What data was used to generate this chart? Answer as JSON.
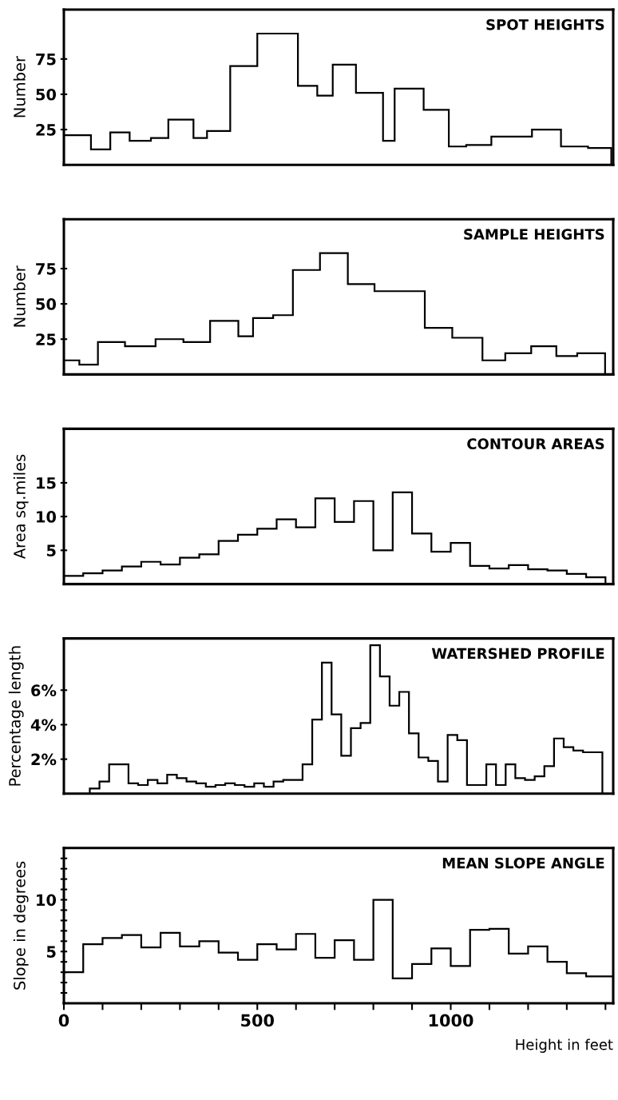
{
  "chart_data": [
    {
      "type": "histogram",
      "title": "SPOT HEIGHTS",
      "ylabel": "Number",
      "color": "#000000",
      "bins": [
        0,
        70,
        120,
        170,
        225,
        270,
        335,
        370,
        430,
        500,
        605,
        655,
        695,
        755,
        825,
        855,
        930,
        995,
        1040,
        1105,
        1210,
        1285,
        1355,
        1415
      ],
      "values": [
        21,
        11,
        23,
        17,
        19,
        32,
        19,
        24,
        70,
        93,
        56,
        49,
        71,
        51,
        17,
        54,
        39,
        13,
        14,
        20,
        25,
        13,
        12
      ],
      "xlim": [
        0,
        1420
      ],
      "ylim": [
        0,
        110
      ],
      "yticks": [
        25,
        50,
        75
      ],
      "tick_labels": "y"
    },
    {
      "type": "histogram",
      "title": "SAMPLE HEIGHTS",
      "ylabel": "Number",
      "color": "#000000",
      "bins": [
        0,
        40,
        88,
        158,
        237,
        309,
        378,
        451,
        489,
        541,
        592,
        662,
        734,
        803,
        933,
        1004,
        1082,
        1141,
        1208,
        1273,
        1327,
        1399
      ],
      "values": [
        10,
        7,
        23,
        20,
        25,
        23,
        38,
        27,
        40,
        42,
        74,
        86,
        64,
        59,
        33,
        26,
        10,
        15,
        20,
        13,
        15
      ],
      "xlim": [
        0,
        1420
      ],
      "ylim": [
        0,
        110
      ],
      "yticks": [
        25,
        50,
        75
      ],
      "tick_labels": "y"
    },
    {
      "type": "histogram",
      "title": "CONTOUR AREAS",
      "ylabel": "Area sq.miles",
      "color": "#000000",
      "bins": [
        0,
        50,
        100,
        150,
        200,
        250,
        300,
        350,
        400,
        450,
        500,
        550,
        600,
        650,
        700,
        750,
        800,
        850,
        900,
        950,
        1000,
        1050,
        1100,
        1150,
        1200,
        1250,
        1300,
        1350,
        1400
      ],
      "values": [
        1.2,
        1.6,
        2.0,
        2.6,
        3.3,
        2.9,
        3.9,
        4.4,
        6.4,
        7.3,
        8.2,
        9.6,
        8.4,
        12.7,
        9.2,
        12.3,
        5.0,
        13.6,
        7.5,
        4.8,
        6.1,
        2.7,
        2.3,
        2.8,
        2.2,
        2.0,
        1.5,
        1.0
      ],
      "xlim": [
        0,
        1420
      ],
      "ylim": [
        0,
        23
      ],
      "yticks": [
        5,
        10,
        15
      ],
      "tick_labels": "y"
    },
    {
      "type": "histogram",
      "title": "WATERSHED PROFILE",
      "ylabel": "Percentage length",
      "color": "#000000",
      "bins": [
        67,
        92,
        117,
        142,
        167,
        192,
        217,
        242,
        267,
        292,
        317,
        342,
        367,
        392,
        417,
        442,
        467,
        492,
        517,
        542,
        567,
        592,
        617,
        642,
        667,
        692,
        717,
        742,
        767,
        792,
        817,
        842,
        867,
        892,
        917,
        942,
        967,
        992,
        1017,
        1042,
        1067,
        1092,
        1117,
        1142,
        1167,
        1192,
        1217,
        1242,
        1267,
        1292,
        1317,
        1342,
        1367,
        1392
      ],
      "values": [
        0.3,
        0.7,
        1.7,
        1.7,
        0.6,
        0.5,
        0.8,
        0.6,
        1.1,
        0.9,
        0.7,
        0.6,
        0.4,
        0.5,
        0.6,
        0.5,
        0.4,
        0.6,
        0.4,
        0.7,
        0.8,
        0.8,
        1.7,
        4.3,
        7.6,
        4.6,
        2.2,
        3.8,
        4.1,
        8.6,
        6.8,
        5.1,
        5.9,
        3.5,
        2.1,
        1.9,
        0.7,
        3.4,
        3.1,
        0.5,
        0.5,
        1.7,
        0.5,
        1.7,
        0.9,
        0.8,
        1.0,
        1.6,
        3.2,
        2.7,
        2.5,
        2.4,
        2.4
      ],
      "xlim": [
        0,
        1420
      ],
      "ylim": [
        0,
        9
      ],
      "yticks": [
        {
          "value": 2,
          "label": "2%"
        },
        {
          "value": 4,
          "label": "4%"
        },
        {
          "value": 6,
          "label": "6%"
        }
      ],
      "tick_labels": "y"
    },
    {
      "type": "histogram",
      "title": "MEAN SLOPE ANGLE",
      "ylabel": "Slope in degrees",
      "xlabel": "Height in feet",
      "color": "#000000",
      "bins": [
        0,
        50,
        100,
        150,
        200,
        250,
        300,
        350,
        400,
        450,
        500,
        550,
        600,
        650,
        700,
        750,
        800,
        850,
        900,
        950,
        1000,
        1050,
        1100,
        1150,
        1200,
        1250,
        1300,
        1350,
        1420
      ],
      "values": [
        3.0,
        5.7,
        6.3,
        6.6,
        5.4,
        6.8,
        5.5,
        6.0,
        4.9,
        4.2,
        5.7,
        5.2,
        6.7,
        4.4,
        6.1,
        4.2,
        10.0,
        2.4,
        3.8,
        5.3,
        3.6,
        7.1,
        7.2,
        4.8,
        5.5,
        4.0,
        2.9,
        2.6
      ],
      "xlim": [
        0,
        1420
      ],
      "ylim": [
        0,
        15
      ],
      "xticks": [
        0,
        {
          "value": 100,
          "label": null
        },
        {
          "value": 200,
          "label": null
        },
        {
          "value": 300,
          "label": null
        },
        {
          "value": 400,
          "label": null
        },
        500,
        {
          "value": 600,
          "label": null
        },
        {
          "value": 700,
          "label": null
        },
        {
          "value": 800,
          "label": null
        },
        {
          "value": 900,
          "label": null
        },
        1000,
        {
          "value": 1100,
          "label": null
        },
        {
          "value": 1200,
          "label": null
        },
        {
          "value": 1300,
          "label": null
        },
        {
          "value": 1400,
          "label": null
        }
      ],
      "yticks": [
        {
          "value": 1,
          "label": null
        },
        {
          "value": 2,
          "label": null
        },
        {
          "value": 3,
          "label": null
        },
        {
          "value": 4,
          "label": null
        },
        5,
        {
          "value": 6,
          "label": null
        },
        {
          "value": 7,
          "label": null
        },
        {
          "value": 8,
          "label": null
        },
        {
          "value": 9,
          "label": null
        },
        10,
        {
          "value": 11,
          "label": null
        },
        {
          "value": 12,
          "label": null
        },
        {
          "value": 13,
          "label": null
        },
        {
          "value": 14,
          "label": null
        }
      ]
    }
  ]
}
